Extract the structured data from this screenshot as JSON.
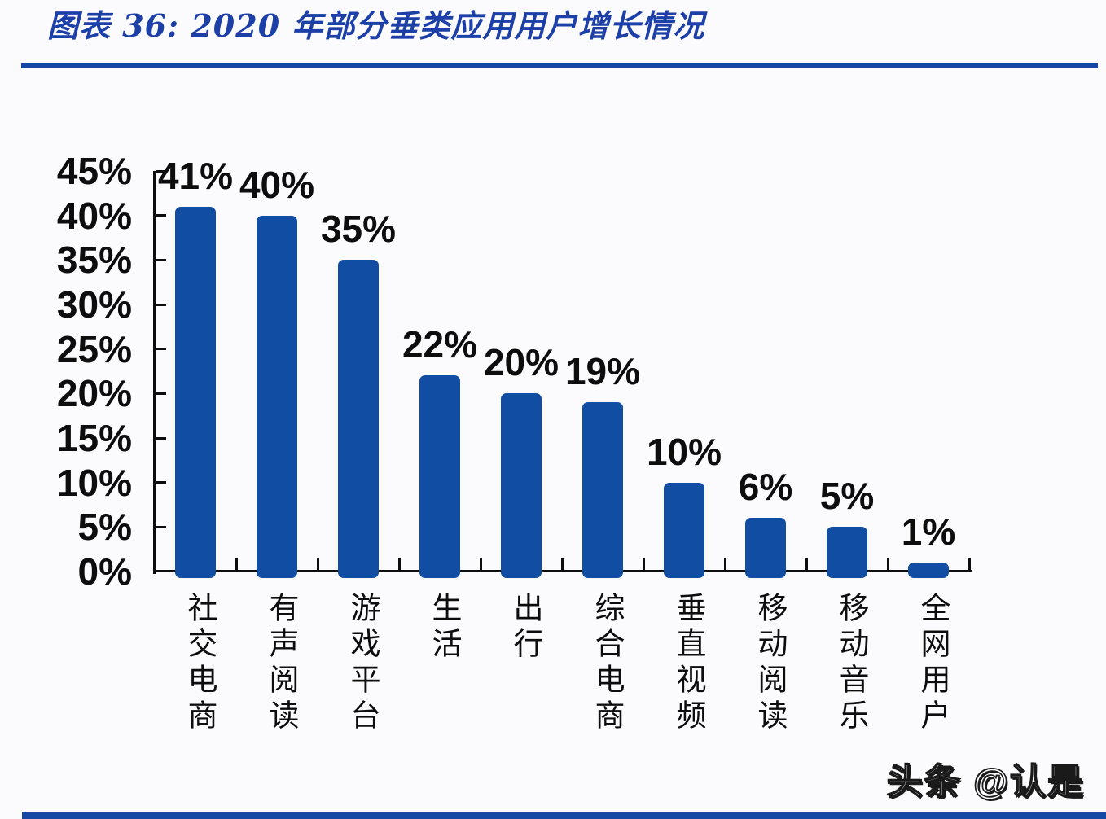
{
  "page": {
    "background": "#FBFAFC",
    "watermark": "头条 @认是"
  },
  "header": {
    "title": "图表 36:  2020 年部分垂类应用用户增长情况",
    "title_color": "#1C3FA8",
    "rule_color": "#1547A4"
  },
  "chart_data": {
    "type": "bar",
    "title": "2020 年部分垂类应用用户增长情况",
    "categories": [
      "社交电商",
      "有声阅读",
      "游戏平台",
      "生活",
      "出行",
      "综合电商",
      "垂直视频",
      "移动阅读",
      "移动音乐",
      "全网用户"
    ],
    "values": [
      41,
      40,
      35,
      22,
      20,
      19,
      10,
      6,
      5,
      1
    ],
    "data_labels": [
      "41%",
      "40%",
      "35%",
      "22%",
      "20%",
      "19%",
      "10%",
      "6%",
      "5%",
      "1%"
    ],
    "xlabel": "",
    "ylabel": "",
    "ylim": [
      0,
      45
    ],
    "ytick_interval": 5,
    "ytick_labels": [
      "45%",
      "40%",
      "35%",
      "30%",
      "25%",
      "20%",
      "15%",
      "10%",
      "5%",
      "0%"
    ],
    "bar_color": "#104DA3",
    "axis_color": "#0d0d0d",
    "grid": false,
    "legend": false,
    "data_label_position": "above-bars",
    "category_label_orientation": "vertical"
  }
}
